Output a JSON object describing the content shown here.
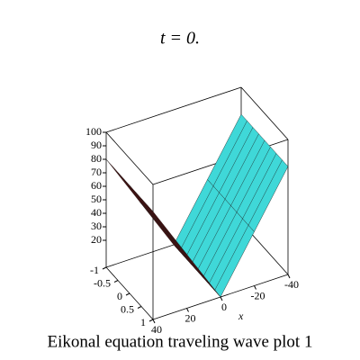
{
  "chart_data": {
    "type": "surface3d",
    "title": "t = 0.",
    "caption": "Eikonal equation  traveling wave plot 1",
    "xlabel": "x",
    "x": [
      -40,
      -20,
      0,
      20,
      40
    ],
    "z": [
      80,
      40,
      0,
      40,
      80
    ],
    "xlim": [
      -40,
      40
    ],
    "ylim": [
      -1,
      1
    ],
    "zlim": [
      0,
      100
    ],
    "xticks": [
      -40,
      -20,
      0,
      20,
      40
    ],
    "yticks": [
      -1,
      -0.5,
      0,
      0.5,
      1
    ],
    "zticks": [
      20,
      30,
      40,
      50,
      60,
      70,
      80,
      90,
      100
    ],
    "surface_colors": [
      "#3fd8d8",
      "#5e0c0c"
    ],
    "mesh_color": "#1a1a1a"
  }
}
